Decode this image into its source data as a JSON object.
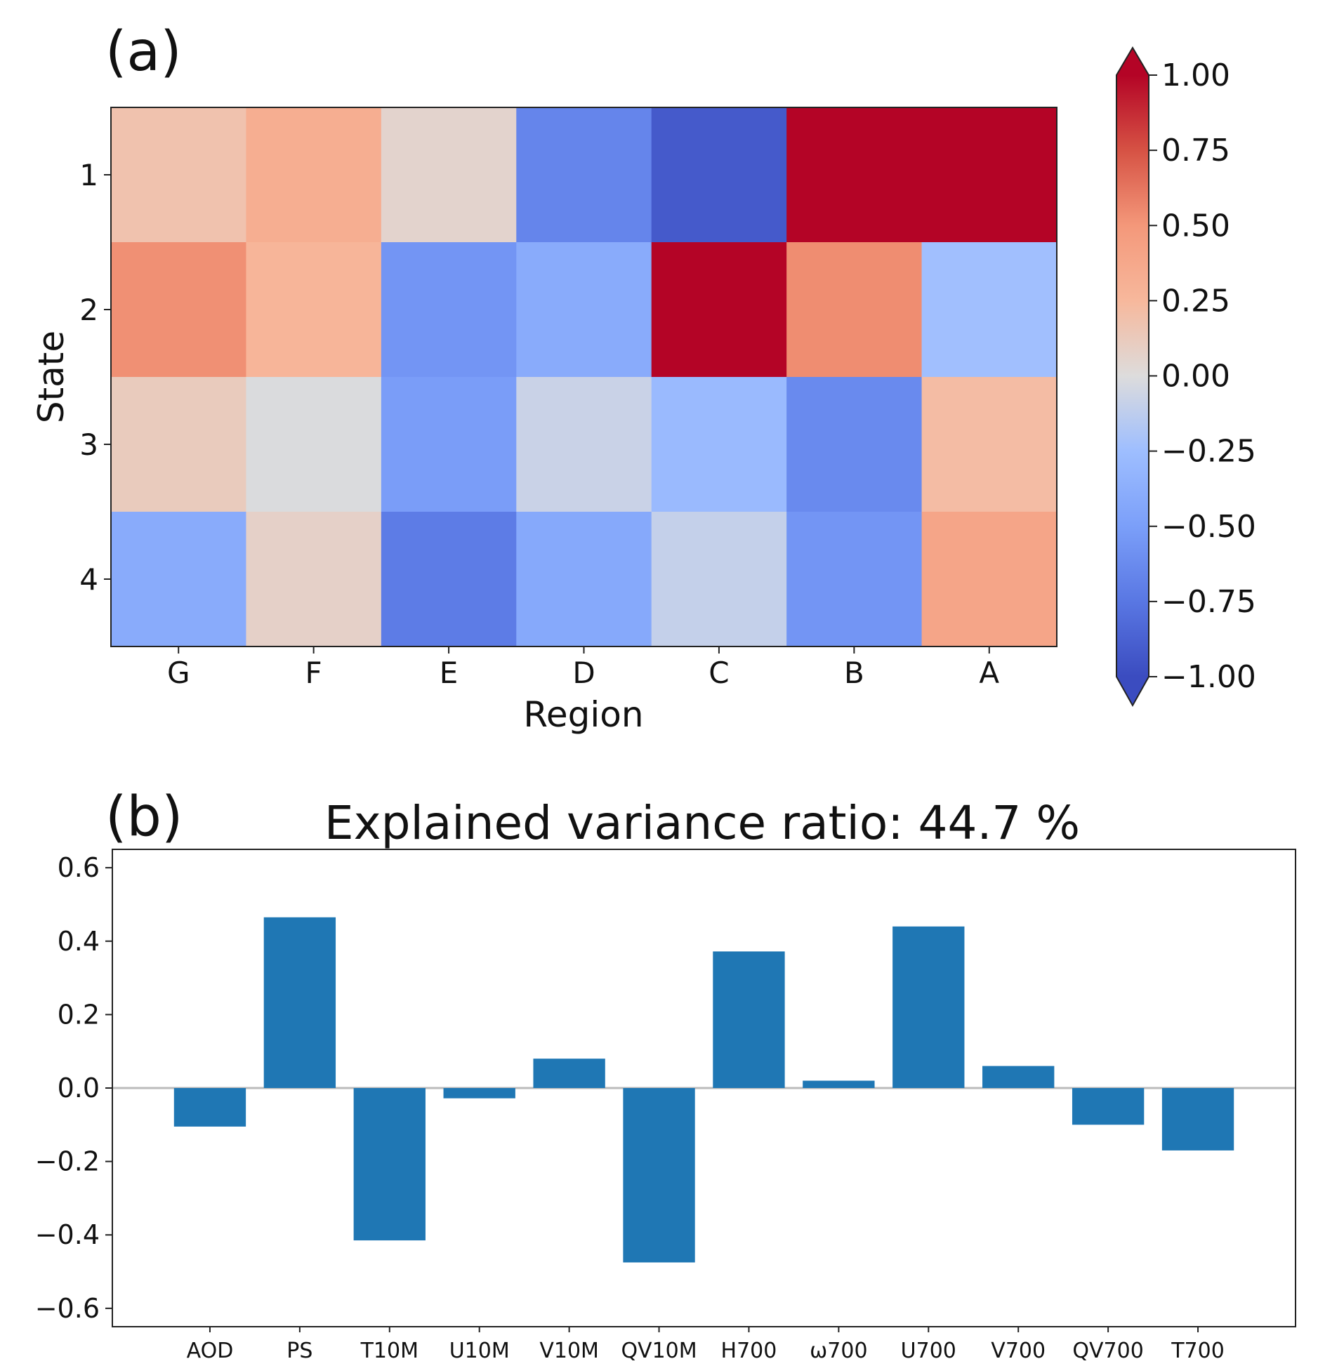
{
  "chart_data": [
    {
      "type": "heatmap",
      "panel_label": "(a)",
      "title": "",
      "xlabel": "Region",
      "ylabel": "State",
      "x_categories": [
        "G",
        "F",
        "E",
        "D",
        "C",
        "B",
        "A"
      ],
      "y_categories": [
        "1",
        "2",
        "3",
        "4"
      ],
      "values": [
        [
          0.18,
          0.33,
          0.06,
          -0.66,
          -0.92,
          1.0,
          1.0
        ],
        [
          0.53,
          0.27,
          -0.56,
          -0.4,
          1.0,
          0.54,
          -0.24
        ],
        [
          0.12,
          -0.01,
          -0.51,
          -0.08,
          -0.28,
          -0.63,
          0.22
        ],
        [
          -0.4,
          0.08,
          -0.72,
          -0.42,
          -0.1,
          -0.56,
          0.4
        ]
      ],
      "colorbar": {
        "vmin": -1.0,
        "vmax": 1.0,
        "colormap": "coolwarm",
        "extend": "both",
        "ticks": [
          "1.00",
          "0.75",
          "0.50",
          "0.25",
          "0.00",
          "−0.25",
          "−0.50",
          "−0.75",
          "−1.00"
        ],
        "tick_values": [
          1.0,
          0.75,
          0.5,
          0.25,
          0.0,
          -0.25,
          -0.5,
          -0.75,
          -1.0
        ]
      }
    },
    {
      "type": "bar",
      "panel_label": "(b)",
      "title": "Explained variance ratio: 44.7 %",
      "xlabel": "",
      "ylabel": "",
      "categories": [
        "AOD",
        "PS",
        "T10M",
        "U10M",
        "V10M",
        "QV10M",
        "H700",
        "ω700",
        "U700",
        "V700",
        "QV700",
        "T700"
      ],
      "values": [
        -0.105,
        0.465,
        -0.415,
        -0.028,
        0.08,
        -0.475,
        0.372,
        0.02,
        0.44,
        0.06,
        -0.1,
        -0.17
      ],
      "ylim": [
        -0.65,
        0.65
      ],
      "yticks": [
        0.6,
        0.4,
        0.2,
        0.0,
        -0.2,
        -0.4,
        -0.6
      ],
      "ytick_labels": [
        "0.6",
        "0.4",
        "0.2",
        "0.0",
        "−0.2",
        "−0.4",
        "−0.6"
      ],
      "bar_color": "#1f77b4",
      "zero_line_color": "#bbbbbb"
    }
  ]
}
